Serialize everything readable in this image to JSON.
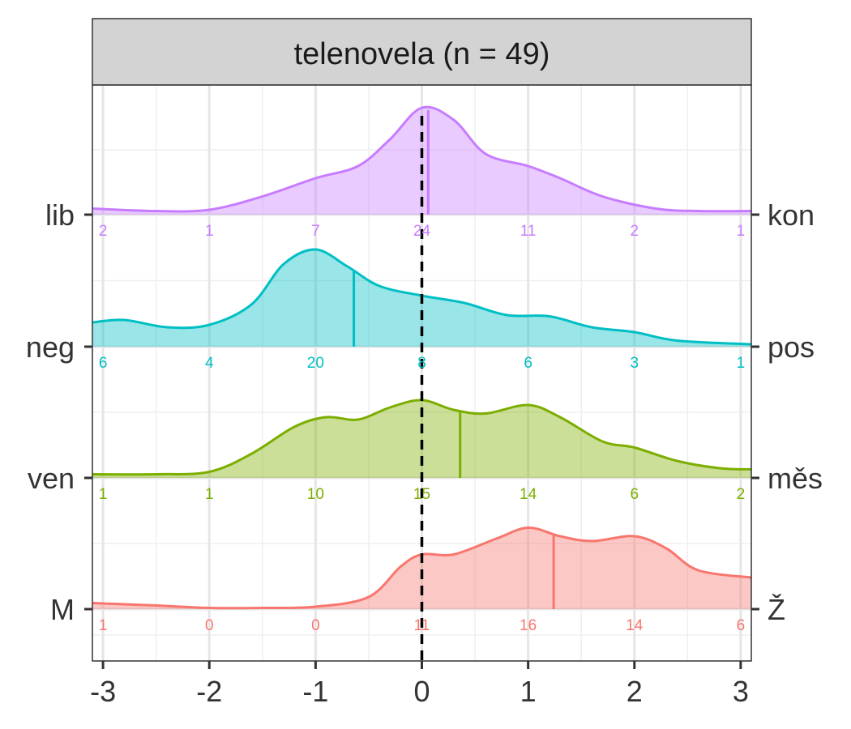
{
  "chart_data": {
    "type": "area",
    "title": "telenovela (n = 49)",
    "xlim": [
      -3.1,
      3.1
    ],
    "x_ticks": [
      -3,
      -2,
      -1,
      0,
      1,
      2,
      3
    ],
    "x_tick_labels": [
      "-3",
      "-2",
      "-1",
      "0",
      "1",
      "2",
      "3"
    ],
    "reference_line_x": 0,
    "grid": true,
    "series": [
      {
        "left_label": "lib",
        "right_label": "kon",
        "color": "#C77CFF",
        "counts": [
          2,
          1,
          7,
          24,
          11,
          2,
          1
        ],
        "mean": 0.06,
        "density": [
          [
            -3.1,
            0.05
          ],
          [
            -2.5,
            0.03
          ],
          [
            -2.0,
            0.04
          ],
          [
            -1.5,
            0.15
          ],
          [
            -1.0,
            0.3
          ],
          [
            -0.6,
            0.4
          ],
          [
            -0.3,
            0.62
          ],
          [
            0.0,
            0.88
          ],
          [
            0.3,
            0.78
          ],
          [
            0.6,
            0.5
          ],
          [
            1.0,
            0.4
          ],
          [
            1.3,
            0.3
          ],
          [
            1.7,
            0.15
          ],
          [
            2.2,
            0.05
          ],
          [
            2.6,
            0.03
          ],
          [
            3.1,
            0.03
          ]
        ]
      },
      {
        "left_label": "neg",
        "right_label": "pos",
        "color": "#00BFC4",
        "counts": [
          6,
          4,
          20,
          8,
          6,
          3,
          1
        ],
        "mean": -0.64,
        "density": [
          [
            -3.1,
            0.2
          ],
          [
            -2.8,
            0.22
          ],
          [
            -2.4,
            0.16
          ],
          [
            -2.0,
            0.18
          ],
          [
            -1.6,
            0.35
          ],
          [
            -1.3,
            0.68
          ],
          [
            -1.0,
            0.8
          ],
          [
            -0.7,
            0.66
          ],
          [
            -0.4,
            0.5
          ],
          [
            0.0,
            0.42
          ],
          [
            0.4,
            0.36
          ],
          [
            0.8,
            0.26
          ],
          [
            1.2,
            0.25
          ],
          [
            1.6,
            0.16
          ],
          [
            2.0,
            0.12
          ],
          [
            2.4,
            0.05
          ],
          [
            3.1,
            0.02
          ]
        ]
      },
      {
        "left_label": "ven",
        "right_label": "měs",
        "color": "#7CAE00",
        "counts": [
          1,
          1,
          10,
          15,
          14,
          6,
          2
        ],
        "mean": 0.36,
        "density": [
          [
            -3.1,
            0.03
          ],
          [
            -2.5,
            0.03
          ],
          [
            -2.0,
            0.05
          ],
          [
            -1.6,
            0.2
          ],
          [
            -1.2,
            0.42
          ],
          [
            -0.9,
            0.5
          ],
          [
            -0.6,
            0.48
          ],
          [
            -0.3,
            0.58
          ],
          [
            0.0,
            0.64
          ],
          [
            0.3,
            0.56
          ],
          [
            0.6,
            0.53
          ],
          [
            1.0,
            0.6
          ],
          [
            1.3,
            0.5
          ],
          [
            1.7,
            0.3
          ],
          [
            2.0,
            0.25
          ],
          [
            2.4,
            0.14
          ],
          [
            2.8,
            0.08
          ],
          [
            3.1,
            0.07
          ]
        ]
      },
      {
        "left_label": "M",
        "right_label": "Ž",
        "color": "#F8766D",
        "counts": [
          1,
          0,
          0,
          11,
          16,
          14,
          6
        ],
        "mean": 1.24,
        "density": [
          [
            -3.1,
            0.05
          ],
          [
            -2.5,
            0.03
          ],
          [
            -2.0,
            0.01
          ],
          [
            -1.5,
            0.01
          ],
          [
            -1.0,
            0.02
          ],
          [
            -0.5,
            0.1
          ],
          [
            -0.2,
            0.35
          ],
          [
            0.0,
            0.45
          ],
          [
            0.3,
            0.45
          ],
          [
            0.7,
            0.58
          ],
          [
            1.0,
            0.67
          ],
          [
            1.3,
            0.6
          ],
          [
            1.6,
            0.56
          ],
          [
            2.0,
            0.6
          ],
          [
            2.3,
            0.5
          ],
          [
            2.6,
            0.32
          ],
          [
            3.1,
            0.26
          ]
        ]
      }
    ]
  }
}
